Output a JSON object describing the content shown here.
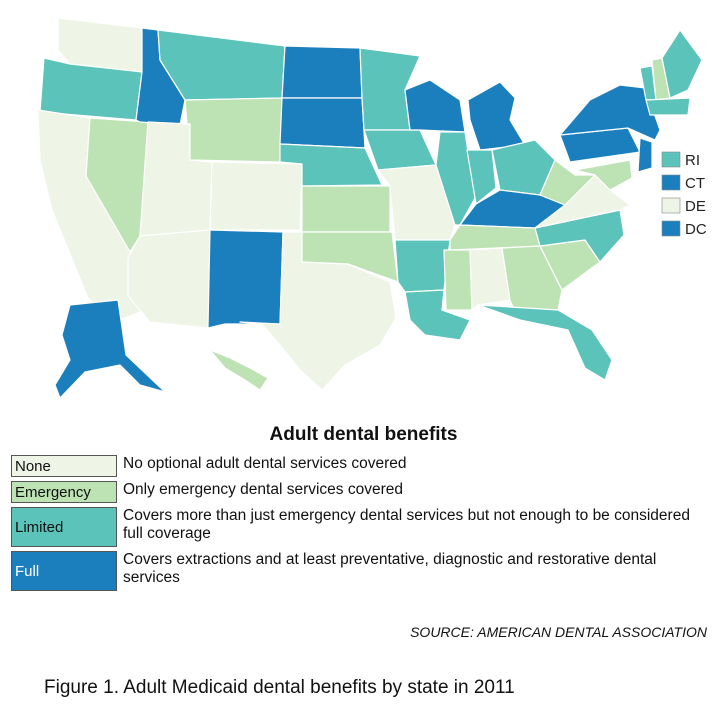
{
  "colors": {
    "none": "#eef4e6",
    "emergency": "#bde3b4",
    "limited": "#5cc3bb",
    "full": "#1b7fbd"
  },
  "map": {
    "states": [
      {
        "id": "WA",
        "level": "none"
      },
      {
        "id": "OR",
        "level": "limited"
      },
      {
        "id": "CA",
        "level": "none"
      },
      {
        "id": "NV",
        "level": "emergency"
      },
      {
        "id": "ID",
        "level": "full"
      },
      {
        "id": "MT",
        "level": "limited"
      },
      {
        "id": "WY",
        "level": "emergency"
      },
      {
        "id": "UT",
        "level": "none"
      },
      {
        "id": "AZ",
        "level": "none"
      },
      {
        "id": "CO",
        "level": "none"
      },
      {
        "id": "NM",
        "level": "full"
      },
      {
        "id": "TX",
        "level": "none"
      },
      {
        "id": "ND",
        "level": "full"
      },
      {
        "id": "SD",
        "level": "full"
      },
      {
        "id": "NE",
        "level": "limited"
      },
      {
        "id": "KS",
        "level": "emergency"
      },
      {
        "id": "OK",
        "level": "emergency"
      },
      {
        "id": "MN",
        "level": "limited"
      },
      {
        "id": "IA",
        "level": "limited"
      },
      {
        "id": "MO",
        "level": "none"
      },
      {
        "id": "AR",
        "level": "limited"
      },
      {
        "id": "LA",
        "level": "limited"
      },
      {
        "id": "WI",
        "level": "full"
      },
      {
        "id": "IL",
        "level": "limited"
      },
      {
        "id": "MI",
        "level": "full"
      },
      {
        "id": "IN",
        "level": "limited"
      },
      {
        "id": "OH",
        "level": "limited"
      },
      {
        "id": "KY",
        "level": "full"
      },
      {
        "id": "TN",
        "level": "emergency"
      },
      {
        "id": "MS",
        "level": "emergency"
      },
      {
        "id": "AL",
        "level": "none"
      },
      {
        "id": "GA",
        "level": "emergency"
      },
      {
        "id": "FL",
        "level": "limited"
      },
      {
        "id": "SC",
        "level": "emergency"
      },
      {
        "id": "NC",
        "level": "limited"
      },
      {
        "id": "VA",
        "level": "none"
      },
      {
        "id": "WV",
        "level": "emergency"
      },
      {
        "id": "PA",
        "level": "full"
      },
      {
        "id": "NY",
        "level": "full"
      },
      {
        "id": "NJ",
        "level": "full"
      },
      {
        "id": "MD",
        "level": "emergency"
      },
      {
        "id": "VT",
        "level": "limited"
      },
      {
        "id": "NH",
        "level": "emergency"
      },
      {
        "id": "ME",
        "level": "limited"
      },
      {
        "id": "MA",
        "level": "limited"
      },
      {
        "id": "AK",
        "level": "full"
      },
      {
        "id": "HI",
        "level": "emergency"
      }
    ],
    "inset": [
      {
        "label": "RI",
        "level": "limited"
      },
      {
        "label": "CT",
        "level": "full"
      },
      {
        "label": "DE",
        "level": "none"
      },
      {
        "label": "DC",
        "level": "full"
      }
    ]
  },
  "legend": {
    "title": "Adult dental benefits",
    "rows": [
      {
        "level": "none",
        "label": "None",
        "description": "No optional adult dental services covered"
      },
      {
        "level": "emergency",
        "label": "Emergency",
        "description": "Only emergency dental services covered"
      },
      {
        "level": "limited",
        "label": "Limited",
        "description": "Covers more than just emergency dental services but not enough to be considered full coverage"
      },
      {
        "level": "full",
        "label": "Full",
        "description": "Covers extractions and at least preventative, diagnostic and restorative dental services"
      }
    ]
  },
  "source": "SOURCE: AMERICAN DENTAL ASSOCIATION",
  "caption": "Figure 1. Adult Medicaid dental benefits by state in 2011"
}
